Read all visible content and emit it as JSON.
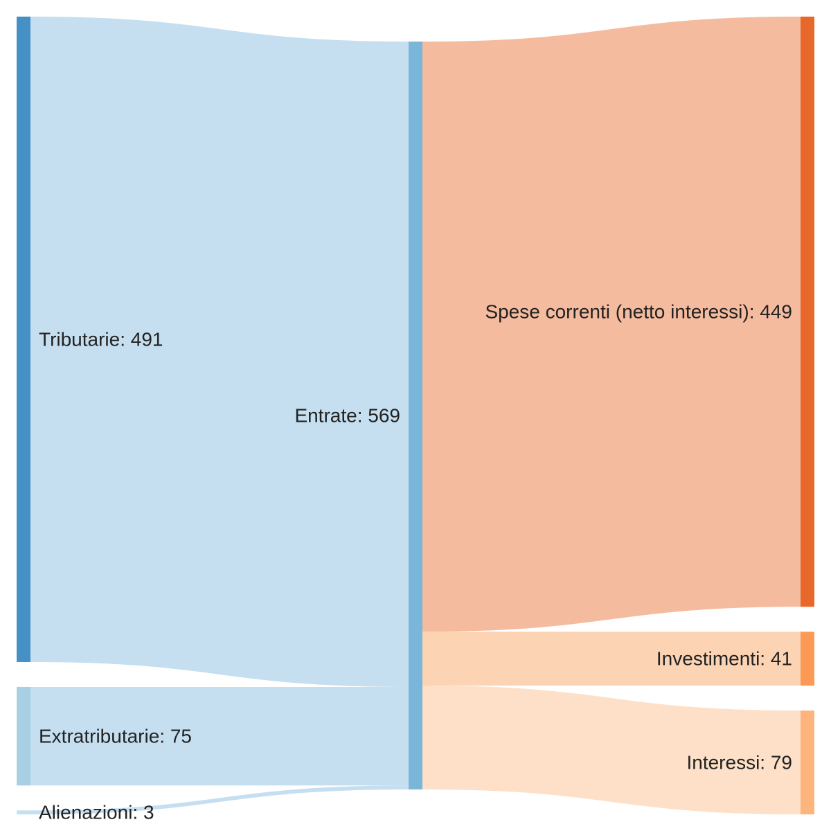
{
  "chart_data": {
    "type": "sankey",
    "nodes": [
      {
        "id": "tributarie",
        "name": "Tributarie",
        "value": 491,
        "color": "#4590c4",
        "column": 0
      },
      {
        "id": "extratributarie",
        "name": "Extratributarie",
        "value": 75,
        "color": "#a8d0e4",
        "column": 0
      },
      {
        "id": "alienazioni",
        "name": "Alienazioni",
        "value": 3,
        "color": "#c5dff0",
        "column": 0
      },
      {
        "id": "entrate",
        "name": "Entrate",
        "value": 569,
        "color": "#7ab6da",
        "column": 1
      },
      {
        "id": "spese",
        "name": "Spese correnti (netto interessi)",
        "value": 449,
        "color": "#e8682b",
        "column": 2
      },
      {
        "id": "investimenti",
        "name": "Investimenti",
        "value": 41,
        "color": "#fc9a55",
        "column": 2
      },
      {
        "id": "interessi",
        "name": "Interessi",
        "value": 79,
        "color": "#fdb57d",
        "column": 2
      }
    ],
    "links": [
      {
        "source": "tributarie",
        "target": "entrate",
        "value": 491,
        "color": "#c5dff0"
      },
      {
        "source": "extratributarie",
        "target": "entrate",
        "value": 75,
        "color": "#c5dff0"
      },
      {
        "source": "alienazioni",
        "target": "entrate",
        "value": 3,
        "color": "#c5dff0"
      },
      {
        "source": "entrate",
        "target": "spese",
        "value": 449,
        "color": "#f5bb9f"
      },
      {
        "source": "entrate",
        "target": "investimenti",
        "value": 41,
        "color": "#fcd3b3"
      },
      {
        "source": "entrate",
        "target": "interessi",
        "value": 79,
        "color": "#fde0c7"
      }
    ]
  }
}
